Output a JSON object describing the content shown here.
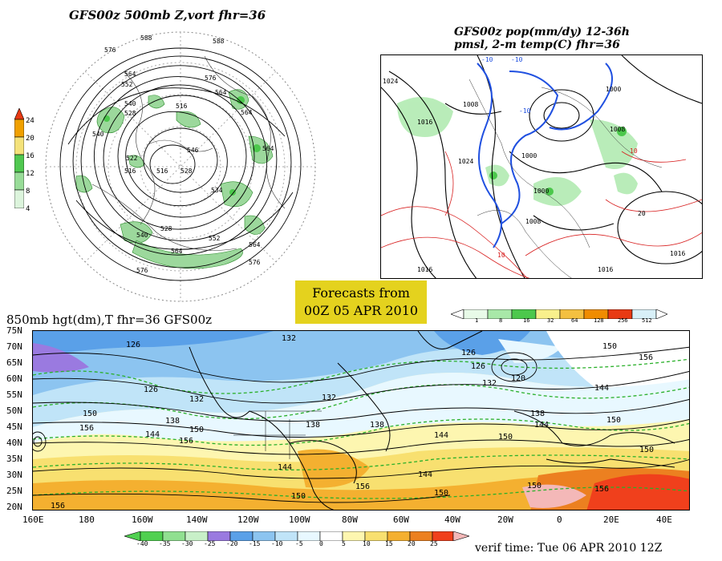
{
  "panel_500mb": {
    "title": "GFS00z  500mb Z,vort   fhr=36",
    "colorbar_values": [
      "24",
      "20",
      "16",
      "12",
      "8",
      "4"
    ],
    "colorbar_colors": [
      "#e83a14",
      "#f0a000",
      "#f4e27a",
      "#50c850",
      "#98dc98",
      "#dcf4dc"
    ],
    "contour_labels": [
      "588",
      "576",
      "564",
      "552",
      "540",
      "528",
      "516",
      "546",
      "534",
      "522"
    ]
  },
  "panel_pmsl": {
    "title_line1": "GFS00z pop(mm/dy) 12-36h",
    "title_line2": "pmsl, 2-m temp(C)  fhr=36",
    "colorbar_values": [
      "1",
      "8",
      "16",
      "32",
      "64",
      "128",
      "256",
      "512"
    ],
    "colorbar_colors": [
      "#e8fae8",
      "#a8e8a8",
      "#4cc84c",
      "#f8f08c",
      "#f4c040",
      "#f08c00",
      "#e83a14",
      "#d8f0f8"
    ],
    "contour_labels": [
      "1024",
      "1016",
      "1008",
      "1000",
      "-10",
      "10",
      "20"
    ]
  },
  "banner": {
    "line1": "Forecasts from",
    "line2": "00Z 05 APR 2010"
  },
  "panel_850mb": {
    "title": "850mb hgt(dm),T   fhr=36 GFS00z",
    "lat_labels": [
      "75N",
      "70N",
      "65N",
      "60N",
      "55N",
      "50N",
      "45N",
      "40N",
      "35N",
      "30N",
      "25N",
      "20N"
    ],
    "lon_labels": [
      "160E",
      "180",
      "160W",
      "140W",
      "120W",
      "100W",
      "80W",
      "60W",
      "40W",
      "20W",
      "0",
      "20E",
      "40E"
    ],
    "contour_labels": [
      "126",
      "132",
      "138",
      "144",
      "150",
      "156",
      "120"
    ],
    "colorbar_values": [
      "-40",
      "-35",
      "-30",
      "-25",
      "-20",
      "-15",
      "-10",
      "-5",
      "0",
      "5",
      "10",
      "15",
      "20",
      "25"
    ],
    "colorbar_colors": [
      "#50d050",
      "#90e090",
      "#c8f0c8",
      "#9a7ae0",
      "#5aa0e8",
      "#8cc4f0",
      "#c0e4f8",
      "#e8f8ff",
      "#ffffff",
      "#fdf6b0",
      "#f8e070",
      "#f4b030",
      "#ec8020",
      "#f0401c",
      "#f4b8b8"
    ]
  },
  "verif_time": "verif time: Tue 06 APR 2010 12Z"
}
